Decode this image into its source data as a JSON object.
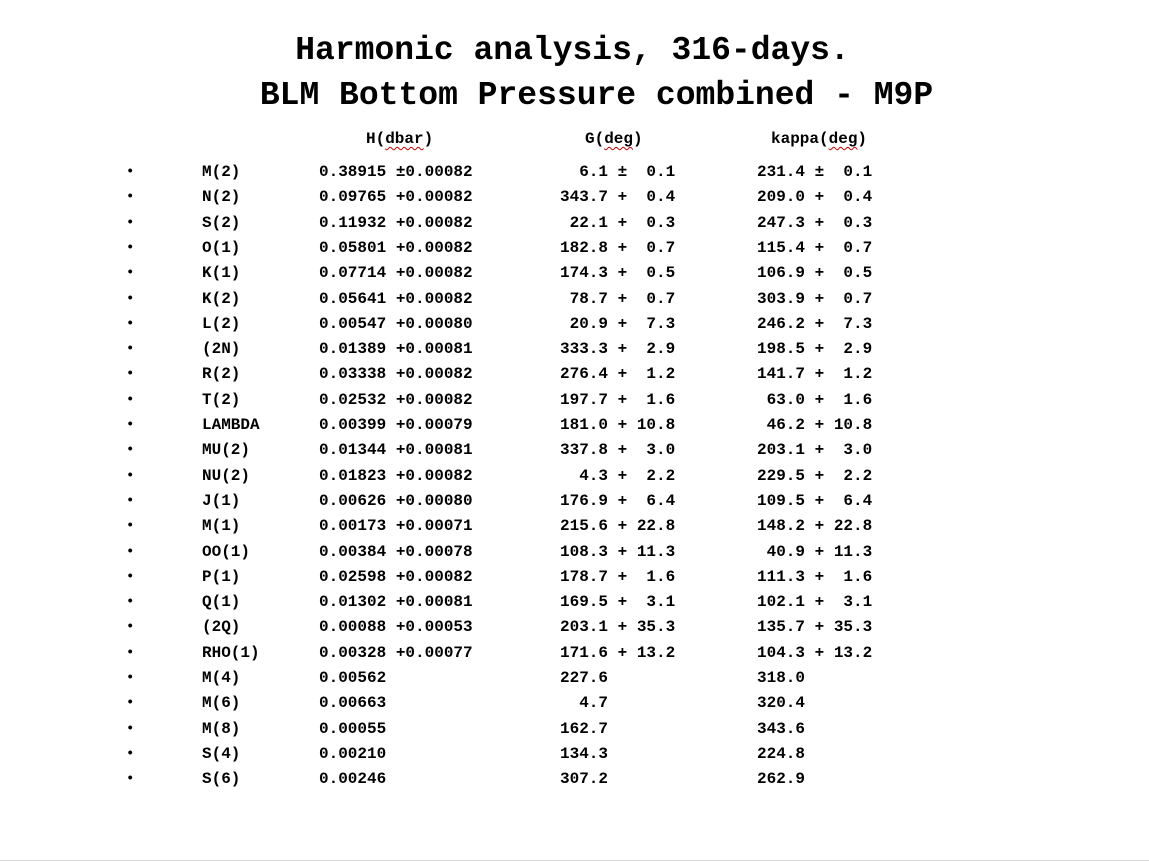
{
  "title_line1": "Harmonic analysis, 316-days.",
  "title_line2": "BLM Bottom Pressure combined - M9P",
  "headers": {
    "h_prefix": "H(",
    "h_unit": "dbar",
    "h_suffix": ")",
    "g_prefix": "G(",
    "g_unit": "deg",
    "g_suffix": ")",
    "k_prefix": "kappa(",
    "k_unit": "deg",
    "k_suffix": ")"
  },
  "bullet_glyph": "•",
  "rows": [
    {
      "name": "M(2)",
      "h": "0.38915 ±0.00082",
      "g": "  6.1 ±  0.1",
      "k": "231.4 ±  0.1"
    },
    {
      "name": "N(2)",
      "h": "0.09765 +0.00082",
      "g": "343.7 +  0.4",
      "k": "209.0 +  0.4"
    },
    {
      "name": "S(2)",
      "h": "0.11932 +0.00082",
      "g": " 22.1 +  0.3",
      "k": "247.3 +  0.3"
    },
    {
      "name": "O(1)",
      "h": "0.05801 +0.00082",
      "g": "182.8 +  0.7",
      "k": "115.4 +  0.7"
    },
    {
      "name": "K(1)",
      "h": "0.07714 +0.00082",
      "g": "174.3 +  0.5",
      "k": "106.9 +  0.5"
    },
    {
      "name": "K(2)",
      "h": "0.05641 +0.00082",
      "g": " 78.7 +  0.7",
      "k": "303.9 +  0.7"
    },
    {
      "name": "L(2)",
      "h": "0.00547 +0.00080",
      "g": " 20.9 +  7.3",
      "k": "246.2 +  7.3"
    },
    {
      "name": "(2N)",
      "h": "0.01389 +0.00081",
      "g": "333.3 +  2.9",
      "k": "198.5 +  2.9"
    },
    {
      "name": "R(2)",
      "h": "0.03338 +0.00082",
      "g": "276.4 +  1.2",
      "k": "141.7 +  1.2"
    },
    {
      "name": "T(2)",
      "h": "0.02532 +0.00082",
      "g": "197.7 +  1.6",
      "k": " 63.0 +  1.6"
    },
    {
      "name": "LAMBDA",
      "h": "0.00399 +0.00079",
      "g": "181.0 + 10.8",
      "k": " 46.2 + 10.8"
    },
    {
      "name": "MU(2)",
      "h": "0.01344 +0.00081",
      "g": "337.8 +  3.0",
      "k": "203.1 +  3.0"
    },
    {
      "name": "NU(2)",
      "h": "0.01823 +0.00082",
      "g": "  4.3 +  2.2",
      "k": "229.5 +  2.2"
    },
    {
      "name": "J(1)",
      "h": "0.00626 +0.00080",
      "g": "176.9 +  6.4",
      "k": "109.5 +  6.4"
    },
    {
      "name": "M(1)",
      "h": "0.00173 +0.00071",
      "g": "215.6 + 22.8",
      "k": "148.2 + 22.8"
    },
    {
      "name": "OO(1)",
      "h": "0.00384 +0.00078",
      "g": "108.3 + 11.3",
      "k": " 40.9 + 11.3"
    },
    {
      "name": "P(1)",
      "h": "0.02598 +0.00082",
      "g": "178.7 +  1.6",
      "k": "111.3 +  1.6"
    },
    {
      "name": "Q(1)",
      "h": "0.01302 +0.00081",
      "g": "169.5 +  3.1",
      "k": "102.1 +  3.1"
    },
    {
      "name": "(2Q)",
      "h": "0.00088 +0.00053",
      "g": "203.1 + 35.3",
      "k": "135.7 + 35.3"
    },
    {
      "name": "RHO(1)",
      "h": "0.00328 +0.00077",
      "g": "171.6 + 13.2",
      "k": "104.3 + 13.2"
    },
    {
      "name": "M(4)",
      "h": "0.00562",
      "g": "227.6",
      "k": "318.0"
    },
    {
      "name": "M(6)",
      "h": "0.00663",
      "g": "  4.7",
      "k": "320.4"
    },
    {
      "name": "M(8)",
      "h": "0.00055",
      "g": "162.7",
      "k": "343.6"
    },
    {
      "name": "S(4)",
      "h": "0.00210",
      "g": "134.3",
      "k": "224.8"
    },
    {
      "name": "S(6)",
      "h": "0.00246",
      "g": "307.2",
      "k": "262.9"
    }
  ]
}
